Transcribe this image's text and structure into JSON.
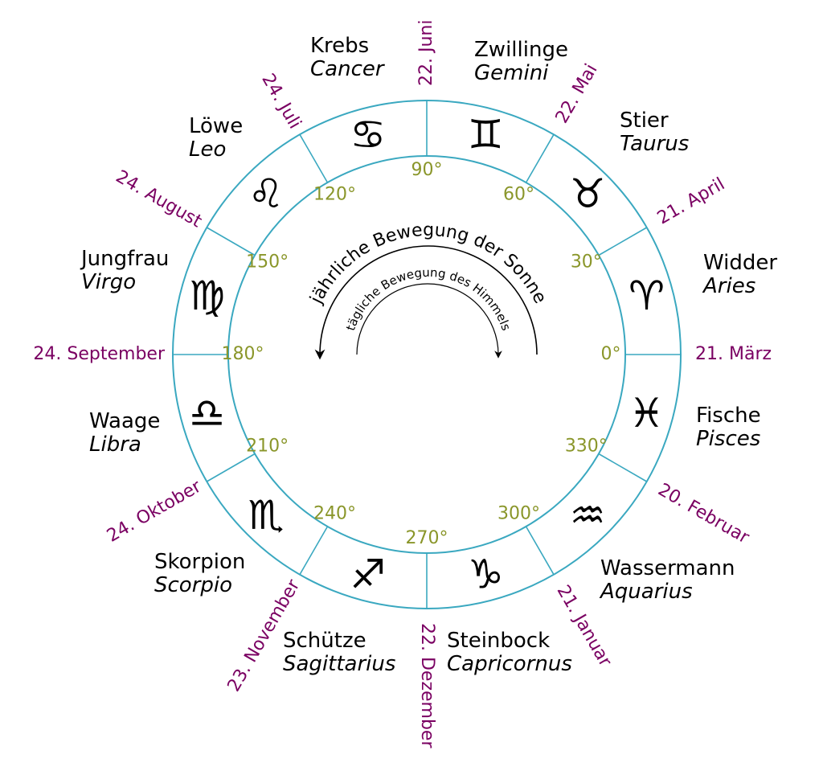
{
  "signs": [
    {
      "german": "Widder",
      "latin": "Aries",
      "symbol": "♈︎"
    },
    {
      "german": "Stier",
      "latin": "Taurus",
      "symbol": "♉︎"
    },
    {
      "german": "Zwillinge",
      "latin": "Gemini",
      "symbol": "♊︎"
    },
    {
      "german": "Krebs",
      "latin": "Cancer",
      "symbol": "♋︎"
    },
    {
      "german": "Löwe",
      "latin": "Leo",
      "symbol": "♌︎"
    },
    {
      "german": "Jungfrau",
      "latin": "Virgo",
      "symbol": "♍︎"
    },
    {
      "german": "Waage",
      "latin": "Libra",
      "symbol": "♎︎"
    },
    {
      "german": "Skorpion",
      "latin": "Scorpio",
      "symbol": "♏︎"
    },
    {
      "german": "Schütze",
      "latin": "Sagittarius",
      "symbol": "♐︎"
    },
    {
      "german": "Steinbock",
      "latin": "Capricornus",
      "symbol": "♑︎"
    },
    {
      "german": "Wassermann",
      "latin": "Aquarius",
      "symbol": "♒︎"
    },
    {
      "german": "Fische",
      "latin": "Pisces",
      "symbol": "♓︎"
    }
  ],
  "degrees": [
    "0°",
    "30°",
    "60°",
    "90°",
    "120°",
    "150°",
    "180°",
    "210°",
    "240°",
    "270°",
    "300°",
    "330°"
  ],
  "dates": [
    "21. März",
    "21. April",
    "22. Mai",
    "22. Juni",
    "24. Juli",
    "24. August",
    "24. September",
    "24. Oktober",
    "23. November",
    "22. Dezember",
    "21. Januar",
    "20. Februar"
  ],
  "annual_motion": "jährliche Bewegung der Sonne",
  "daily_motion": "tägliche Bewegung des Himmels"
}
